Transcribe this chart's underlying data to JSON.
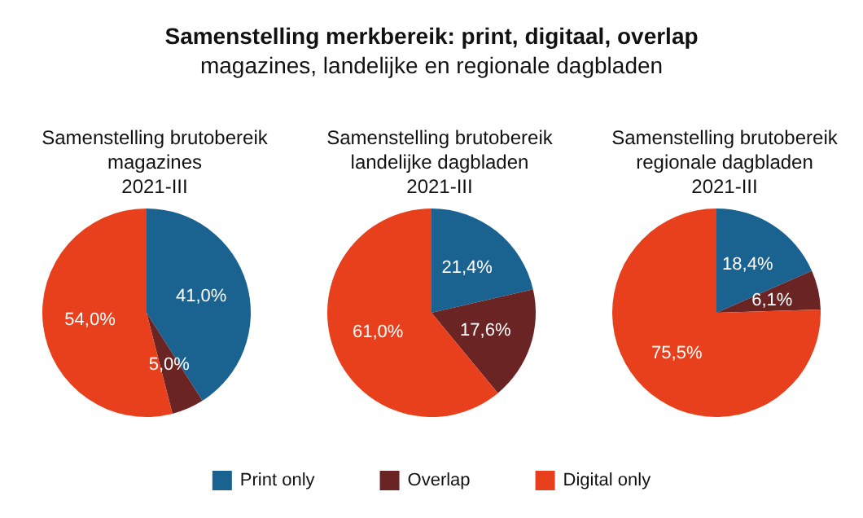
{
  "chart_data": [
    {
      "type": "other",
      "title": "Samenstelling merkbereik: print, digitaal, overlap",
      "subtitle": "magazines, landelijke en regionale dagbladen"
    },
    {
      "type": "pie",
      "title": "Samenstelling brutobereik\nmagazines\n2021-III",
      "values": [
        41.0,
        5.0,
        54.0
      ],
      "colors": [
        "#1a6391",
        "#6b2424",
        "#e8401c"
      ],
      "value_labels": [
        "41,0%",
        "5,0%",
        "54,0%"
      ]
    },
    {
      "type": "pie",
      "title": "Samenstelling brutobereik\nlandelijke dagbladen\n2021-III",
      "values": [
        21.4,
        17.6,
        61.0
      ],
      "colors": [
        "#1a6391",
        "#6b2424",
        "#e8401c"
      ],
      "value_labels": [
        "21,4%",
        "17,6%",
        "61,0%"
      ]
    },
    {
      "type": "pie",
      "title": "Samenstelling brutobereik\nregionale dagbladen\n2021-III",
      "categories": [
        "Print only",
        "Overlap",
        "Digital only"
      ],
      "values": [
        18.4,
        6.1,
        75.5
      ],
      "colors": [
        "#1a6391",
        "#6b2424",
        "#e8401c"
      ],
      "value_labels": [
        "18,4%",
        "6,1%",
        "75,5%"
      ],
      "legend": "bottom"
    }
  ]
}
